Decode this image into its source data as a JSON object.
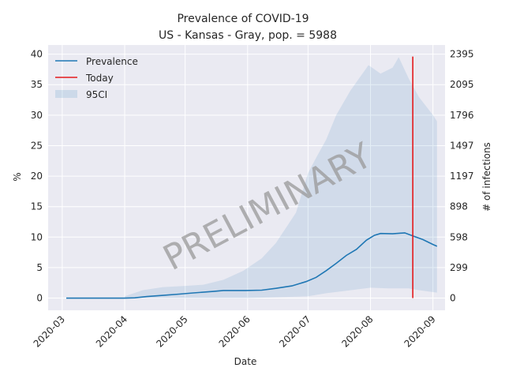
{
  "chart_data": {
    "type": "line",
    "title": "Prevalence of COVID-19",
    "subtitle": "US - Kansas - Gray, pop. = 5988",
    "xlabel": "Date",
    "ylabel": "%",
    "ylabel_right": "# of infections",
    "watermark": "PRELIMINARY",
    "x_ticks": [
      "2020-03",
      "2020-04",
      "2020-05",
      "2020-06",
      "2020-07",
      "2020-08",
      "2020-09"
    ],
    "x_range": [
      "2020-02-23",
      "2020-09-07"
    ],
    "ylim": [
      -2,
      41.5
    ],
    "y_ticks": [
      0,
      5,
      10,
      15,
      20,
      25,
      30,
      35,
      40
    ],
    "y_right_ticks": [
      0,
      299,
      598,
      898,
      1197,
      1497,
      1796,
      2095,
      2395
    ],
    "grid": true,
    "legend_position": "top-left",
    "legend": [
      "Prevalence",
      "Today",
      "95CI"
    ],
    "colors": {
      "prevalence": "#1f77b4",
      "today": "#e41a1c",
      "ci": "#1f77b4",
      "background": "#eaeaf2",
      "grid": "#ffffff"
    },
    "today": "2020-08-22",
    "series": [
      {
        "name": "Prevalence",
        "points": [
          [
            "2020-03-03",
            0.0
          ],
          [
            "2020-03-15",
            0.0
          ],
          [
            "2020-04-01",
            0.0
          ],
          [
            "2020-04-06",
            0.05
          ],
          [
            "2020-04-12",
            0.25
          ],
          [
            "2020-04-20",
            0.45
          ],
          [
            "2020-04-28",
            0.65
          ],
          [
            "2020-05-05",
            0.85
          ],
          [
            "2020-05-15",
            1.1
          ],
          [
            "2020-05-20",
            1.25
          ],
          [
            "2020-05-31",
            1.25
          ],
          [
            "2020-06-08",
            1.3
          ],
          [
            "2020-06-15",
            1.6
          ],
          [
            "2020-06-23",
            2.0
          ],
          [
            "2020-06-30",
            2.7
          ],
          [
            "2020-07-05",
            3.4
          ],
          [
            "2020-07-10",
            4.5
          ],
          [
            "2020-07-15",
            5.7
          ],
          [
            "2020-07-20",
            7.0
          ],
          [
            "2020-07-25",
            8.0
          ],
          [
            "2020-07-30",
            9.5
          ],
          [
            "2020-08-03",
            10.3
          ],
          [
            "2020-08-06",
            10.6
          ],
          [
            "2020-08-12",
            10.55
          ],
          [
            "2020-08-18",
            10.7
          ],
          [
            "2020-08-22",
            10.2
          ],
          [
            "2020-08-27",
            9.6
          ],
          [
            "2020-09-01",
            8.8
          ],
          [
            "2020-09-03",
            8.5
          ]
        ]
      },
      {
        "name": "95CI",
        "upper": [
          [
            "2020-04-01",
            0.3
          ],
          [
            "2020-04-10",
            1.3
          ],
          [
            "2020-04-20",
            1.8
          ],
          [
            "2020-05-01",
            2.0
          ],
          [
            "2020-05-10",
            2.2
          ],
          [
            "2020-05-20",
            3.0
          ],
          [
            "2020-05-30",
            4.5
          ],
          [
            "2020-06-08",
            6.5
          ],
          [
            "2020-06-15",
            9.0
          ],
          [
            "2020-06-25",
            14.0
          ],
          [
            "2020-07-01",
            20.5
          ],
          [
            "2020-07-05",
            23.0
          ],
          [
            "2020-07-10",
            26.0
          ],
          [
            "2020-07-15",
            30.0
          ],
          [
            "2020-07-22",
            34.0
          ],
          [
            "2020-07-31",
            38.2
          ],
          [
            "2020-08-06",
            36.8
          ],
          [
            "2020-08-12",
            37.8
          ],
          [
            "2020-08-15",
            39.5
          ],
          [
            "2020-08-20",
            36.0
          ],
          [
            "2020-08-25",
            33.0
          ],
          [
            "2020-09-01",
            30.0
          ],
          [
            "2020-09-03",
            29.0
          ]
        ],
        "lower": [
          [
            "2020-04-01",
            0.0
          ],
          [
            "2020-06-01",
            0.0
          ],
          [
            "2020-07-01",
            0.3
          ],
          [
            "2020-07-10",
            0.8
          ],
          [
            "2020-07-20",
            1.2
          ],
          [
            "2020-08-01",
            1.7
          ],
          [
            "2020-08-10",
            1.6
          ],
          [
            "2020-08-20",
            1.6
          ],
          [
            "2020-08-25",
            1.3
          ],
          [
            "2020-09-03",
            0.9
          ]
        ]
      }
    ]
  }
}
